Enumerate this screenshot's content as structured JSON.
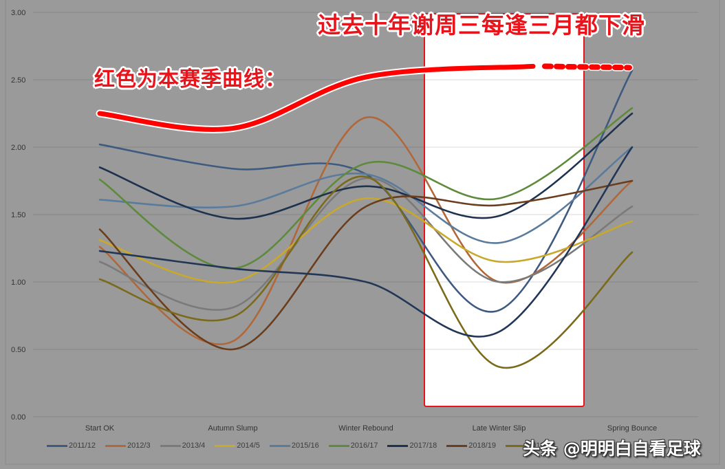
{
  "chart_data": {
    "type": "line",
    "title": "",
    "xlabel": "",
    "ylabel": "",
    "ylim": [
      0,
      3
    ],
    "yticks": [
      "0.00",
      "0.50",
      "1.00",
      "1.50",
      "2.00",
      "2.50",
      "3.00"
    ],
    "grid": true,
    "legend_position": "bottom",
    "categories": [
      "Start OK",
      "Autumn Slump",
      "Winter Rebound",
      "Late Winter Slip",
      "Spring Bounce"
    ],
    "series": [
      {
        "name": "2011/12",
        "color": "#3f5a80",
        "values": [
          2.02,
          1.84,
          1.8,
          0.79,
          2.57
        ]
      },
      {
        "name": "2012/3",
        "color": "#b0683a",
        "values": [
          1.26,
          0.56,
          2.22,
          1.0,
          1.75
        ]
      },
      {
        "name": "2013/4",
        "color": "#7a7a7a",
        "values": [
          1.15,
          0.81,
          1.77,
          1.0,
          1.56
        ]
      },
      {
        "name": "2014/5",
        "color": "#c9a92a",
        "values": [
          1.31,
          1.0,
          1.62,
          1.15,
          1.45
        ]
      },
      {
        "name": "2015/16",
        "color": "#5a7b9c",
        "values": [
          1.61,
          1.56,
          1.8,
          1.29,
          2.0
        ]
      },
      {
        "name": "2016/17",
        "color": "#5e8a3c",
        "values": [
          1.76,
          1.1,
          1.88,
          1.62,
          2.29
        ]
      },
      {
        "name": "2017/18",
        "color": "#1e3250",
        "values": [
          1.85,
          1.47,
          1.71,
          1.49,
          2.25
        ]
      },
      {
        "name": "2018/19",
        "color": "#6a3d1c",
        "values": [
          1.39,
          0.5,
          1.56,
          1.57,
          1.75
        ]
      },
      {
        "name": "2019/20",
        "color": "#7a6a1a",
        "values": [
          1.02,
          0.74,
          1.78,
          0.37,
          1.22
        ]
      },
      {
        "name": "20..",
        "color": "#223655",
        "values": [
          1.23,
          1.1,
          1.0,
          0.63,
          2.0
        ]
      }
    ],
    "annotations": [
      {
        "text": "过去十年谢周三每逢三月都下滑",
        "color": "#e8141b"
      },
      {
        "text": "红色为本赛季曲线：",
        "color": "#e8141b"
      },
      {
        "type": "highlight-box",
        "category": "Late Winter Slip",
        "fill": "#ffffff",
        "border": "#e8141b"
      },
      {
        "type": "hand-drawn-line",
        "name": "current-season",
        "color": "#ff0000",
        "values": [
          2.25,
          2.14,
          2.52,
          2.6,
          2.59
        ],
        "dotted_from_index": 3
      }
    ]
  },
  "annotations": {
    "title": "过去十年谢周三每逢三月都下滑",
    "label": "红色为本赛季曲线："
  },
  "watermark": "头条 @明明白自看足球"
}
